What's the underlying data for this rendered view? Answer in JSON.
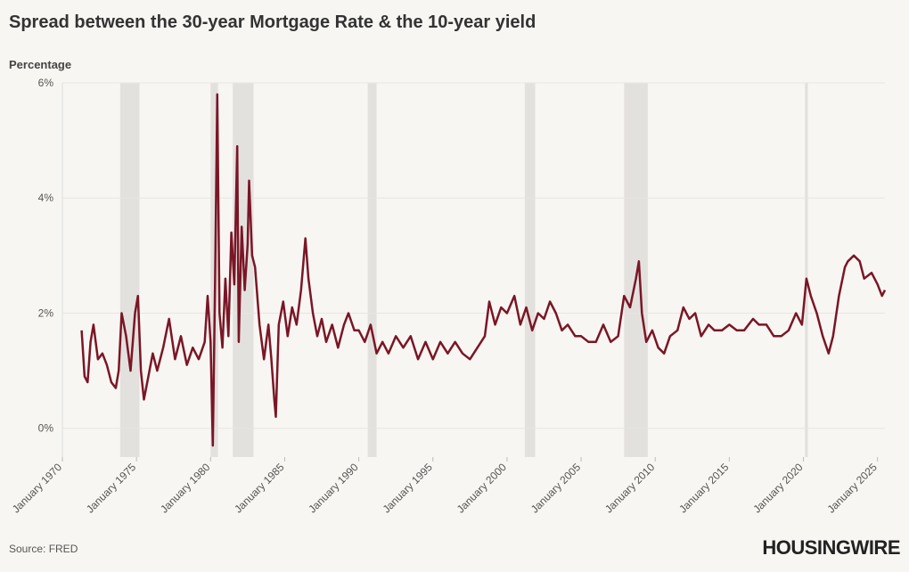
{
  "chart_data": {
    "type": "line",
    "title": "Spread between the 30-year Mortgage Rate & the 10-year yield",
    "y_axis_label": "Percentage",
    "source": "Source: FRED",
    "logo": "HOUSINGWIRE",
    "xlim": [
      1970,
      2025.5
    ],
    "xticks": [
      {
        "value": 1970,
        "label": "January 1970"
      },
      {
        "value": 1975,
        "label": "January 1975"
      },
      {
        "value": 1980,
        "label": "January 1980"
      },
      {
        "value": 1985,
        "label": "January 1985"
      },
      {
        "value": 1990,
        "label": "January 1990"
      },
      {
        "value": 1995,
        "label": "January 1995"
      },
      {
        "value": 2000,
        "label": "January 2000"
      },
      {
        "value": 2005,
        "label": "January 2005"
      },
      {
        "value": 2010,
        "label": "January 2010"
      },
      {
        "value": 2015,
        "label": "January 2015"
      },
      {
        "value": 2020,
        "label": "January 2020"
      },
      {
        "value": 2025,
        "label": "January 2025"
      }
    ],
    "ylim": [
      -0.5,
      6
    ],
    "yticks": [
      {
        "value": 0,
        "label": "0%"
      },
      {
        "value": 2,
        "label": "2%"
      },
      {
        "value": 4,
        "label": "4%"
      },
      {
        "value": 6,
        "label": "6%"
      }
    ],
    "grid": true,
    "shaded_periods": [
      [
        1973.9,
        1975.2
      ],
      [
        1980.0,
        1980.5
      ],
      [
        1981.5,
        1982.9
      ],
      [
        1990.6,
        1991.2
      ],
      [
        2001.2,
        2001.9
      ],
      [
        2007.9,
        2009.5
      ],
      [
        2020.1,
        2020.3
      ]
    ],
    "x": [
      1971.3,
      1971.5,
      1971.7,
      1971.9,
      1972.1,
      1972.4,
      1972.7,
      1973.0,
      1973.3,
      1973.6,
      1973.8,
      1974.0,
      1974.3,
      1974.6,
      1974.9,
      1975.1,
      1975.3,
      1975.5,
      1975.8,
      1976.1,
      1976.4,
      1976.8,
      1977.2,
      1977.6,
      1978.0,
      1978.4,
      1978.8,
      1979.2,
      1979.6,
      1979.8,
      1980.0,
      1980.15,
      1980.3,
      1980.45,
      1980.6,
      1980.8,
      1981.0,
      1981.2,
      1981.4,
      1981.6,
      1981.8,
      1981.9,
      1982.1,
      1982.3,
      1982.5,
      1982.6,
      1982.8,
      1983.0,
      1983.3,
      1983.6,
      1983.9,
      1984.1,
      1984.3,
      1984.4,
      1984.6,
      1984.9,
      1985.2,
      1985.5,
      1985.8,
      1986.1,
      1986.4,
      1986.6,
      1986.9,
      1987.2,
      1987.5,
      1987.8,
      1988.2,
      1988.6,
      1989.0,
      1989.3,
      1989.7,
      1990.0,
      1990.4,
      1990.8,
      1991.2,
      1991.6,
      1992.0,
      1992.5,
      1993.0,
      1993.5,
      1994.0,
      1994.5,
      1995.0,
      1995.5,
      1996.0,
      1996.5,
      1997.0,
      1997.5,
      1998.0,
      1998.5,
      1998.8,
      1999.2,
      1999.6,
      2000.0,
      2000.5,
      2000.9,
      2001.3,
      2001.7,
      2002.1,
      2002.5,
      2002.9,
      2003.3,
      2003.7,
      2004.1,
      2004.6,
      2005.0,
      2005.5,
      2006.0,
      2006.5,
      2007.0,
      2007.5,
      2007.9,
      2008.3,
      2008.7,
      2008.9,
      2009.1,
      2009.4,
      2009.8,
      2010.2,
      2010.6,
      2011.0,
      2011.5,
      2011.9,
      2012.3,
      2012.7,
      2013.1,
      2013.6,
      2014.0,
      2014.5,
      2015.0,
      2015.5,
      2016.0,
      2016.6,
      2017.0,
      2017.5,
      2018.0,
      2018.5,
      2019.0,
      2019.5,
      2019.9,
      2020.2,
      2020.5,
      2020.9,
      2021.3,
      2021.7,
      2022.0,
      2022.4,
      2022.8,
      2023.0,
      2023.4,
      2023.8,
      2024.1,
      2024.6,
      2025.0,
      2025.3,
      2025.5
    ],
    "series": [
      {
        "name": "Spread",
        "color": "#7a1626",
        "values": [
          1.7,
          0.9,
          0.8,
          1.5,
          1.8,
          1.2,
          1.3,
          1.1,
          0.8,
          0.7,
          1.0,
          2.0,
          1.6,
          1.0,
          2.0,
          2.3,
          1.0,
          0.5,
          0.9,
          1.3,
          1.0,
          1.4,
          1.9,
          1.2,
          1.6,
          1.1,
          1.4,
          1.2,
          1.5,
          2.3,
          1.5,
          -0.3,
          2.5,
          5.8,
          2.0,
          1.4,
          2.6,
          1.6,
          3.4,
          2.5,
          4.9,
          1.5,
          3.5,
          2.4,
          3.2,
          4.3,
          3.0,
          2.8,
          1.8,
          1.2,
          1.8,
          1.2,
          0.5,
          0.2,
          1.8,
          2.2,
          1.6,
          2.1,
          1.8,
          2.4,
          3.3,
          2.6,
          2.0,
          1.6,
          1.9,
          1.5,
          1.8,
          1.4,
          1.8,
          2.0,
          1.7,
          1.7,
          1.5,
          1.8,
          1.3,
          1.5,
          1.3,
          1.6,
          1.4,
          1.6,
          1.2,
          1.5,
          1.2,
          1.5,
          1.3,
          1.5,
          1.3,
          1.2,
          1.4,
          1.6,
          2.2,
          1.8,
          2.1,
          2.0,
          2.3,
          1.8,
          2.1,
          1.7,
          2.0,
          1.9,
          2.2,
          2.0,
          1.7,
          1.8,
          1.6,
          1.6,
          1.5,
          1.5,
          1.8,
          1.5,
          1.6,
          2.3,
          2.1,
          2.6,
          2.9,
          2.0,
          1.5,
          1.7,
          1.4,
          1.3,
          1.6,
          1.7,
          2.1,
          1.9,
          2.0,
          1.6,
          1.8,
          1.7,
          1.7,
          1.8,
          1.7,
          1.7,
          1.9,
          1.8,
          1.8,
          1.6,
          1.6,
          1.7,
          2.0,
          1.8,
          2.6,
          2.3,
          2.0,
          1.6,
          1.3,
          1.6,
          2.3,
          2.8,
          2.9,
          3.0,
          2.9,
          2.6,
          2.7,
          2.5,
          2.3,
          2.4
        ]
      }
    ]
  }
}
